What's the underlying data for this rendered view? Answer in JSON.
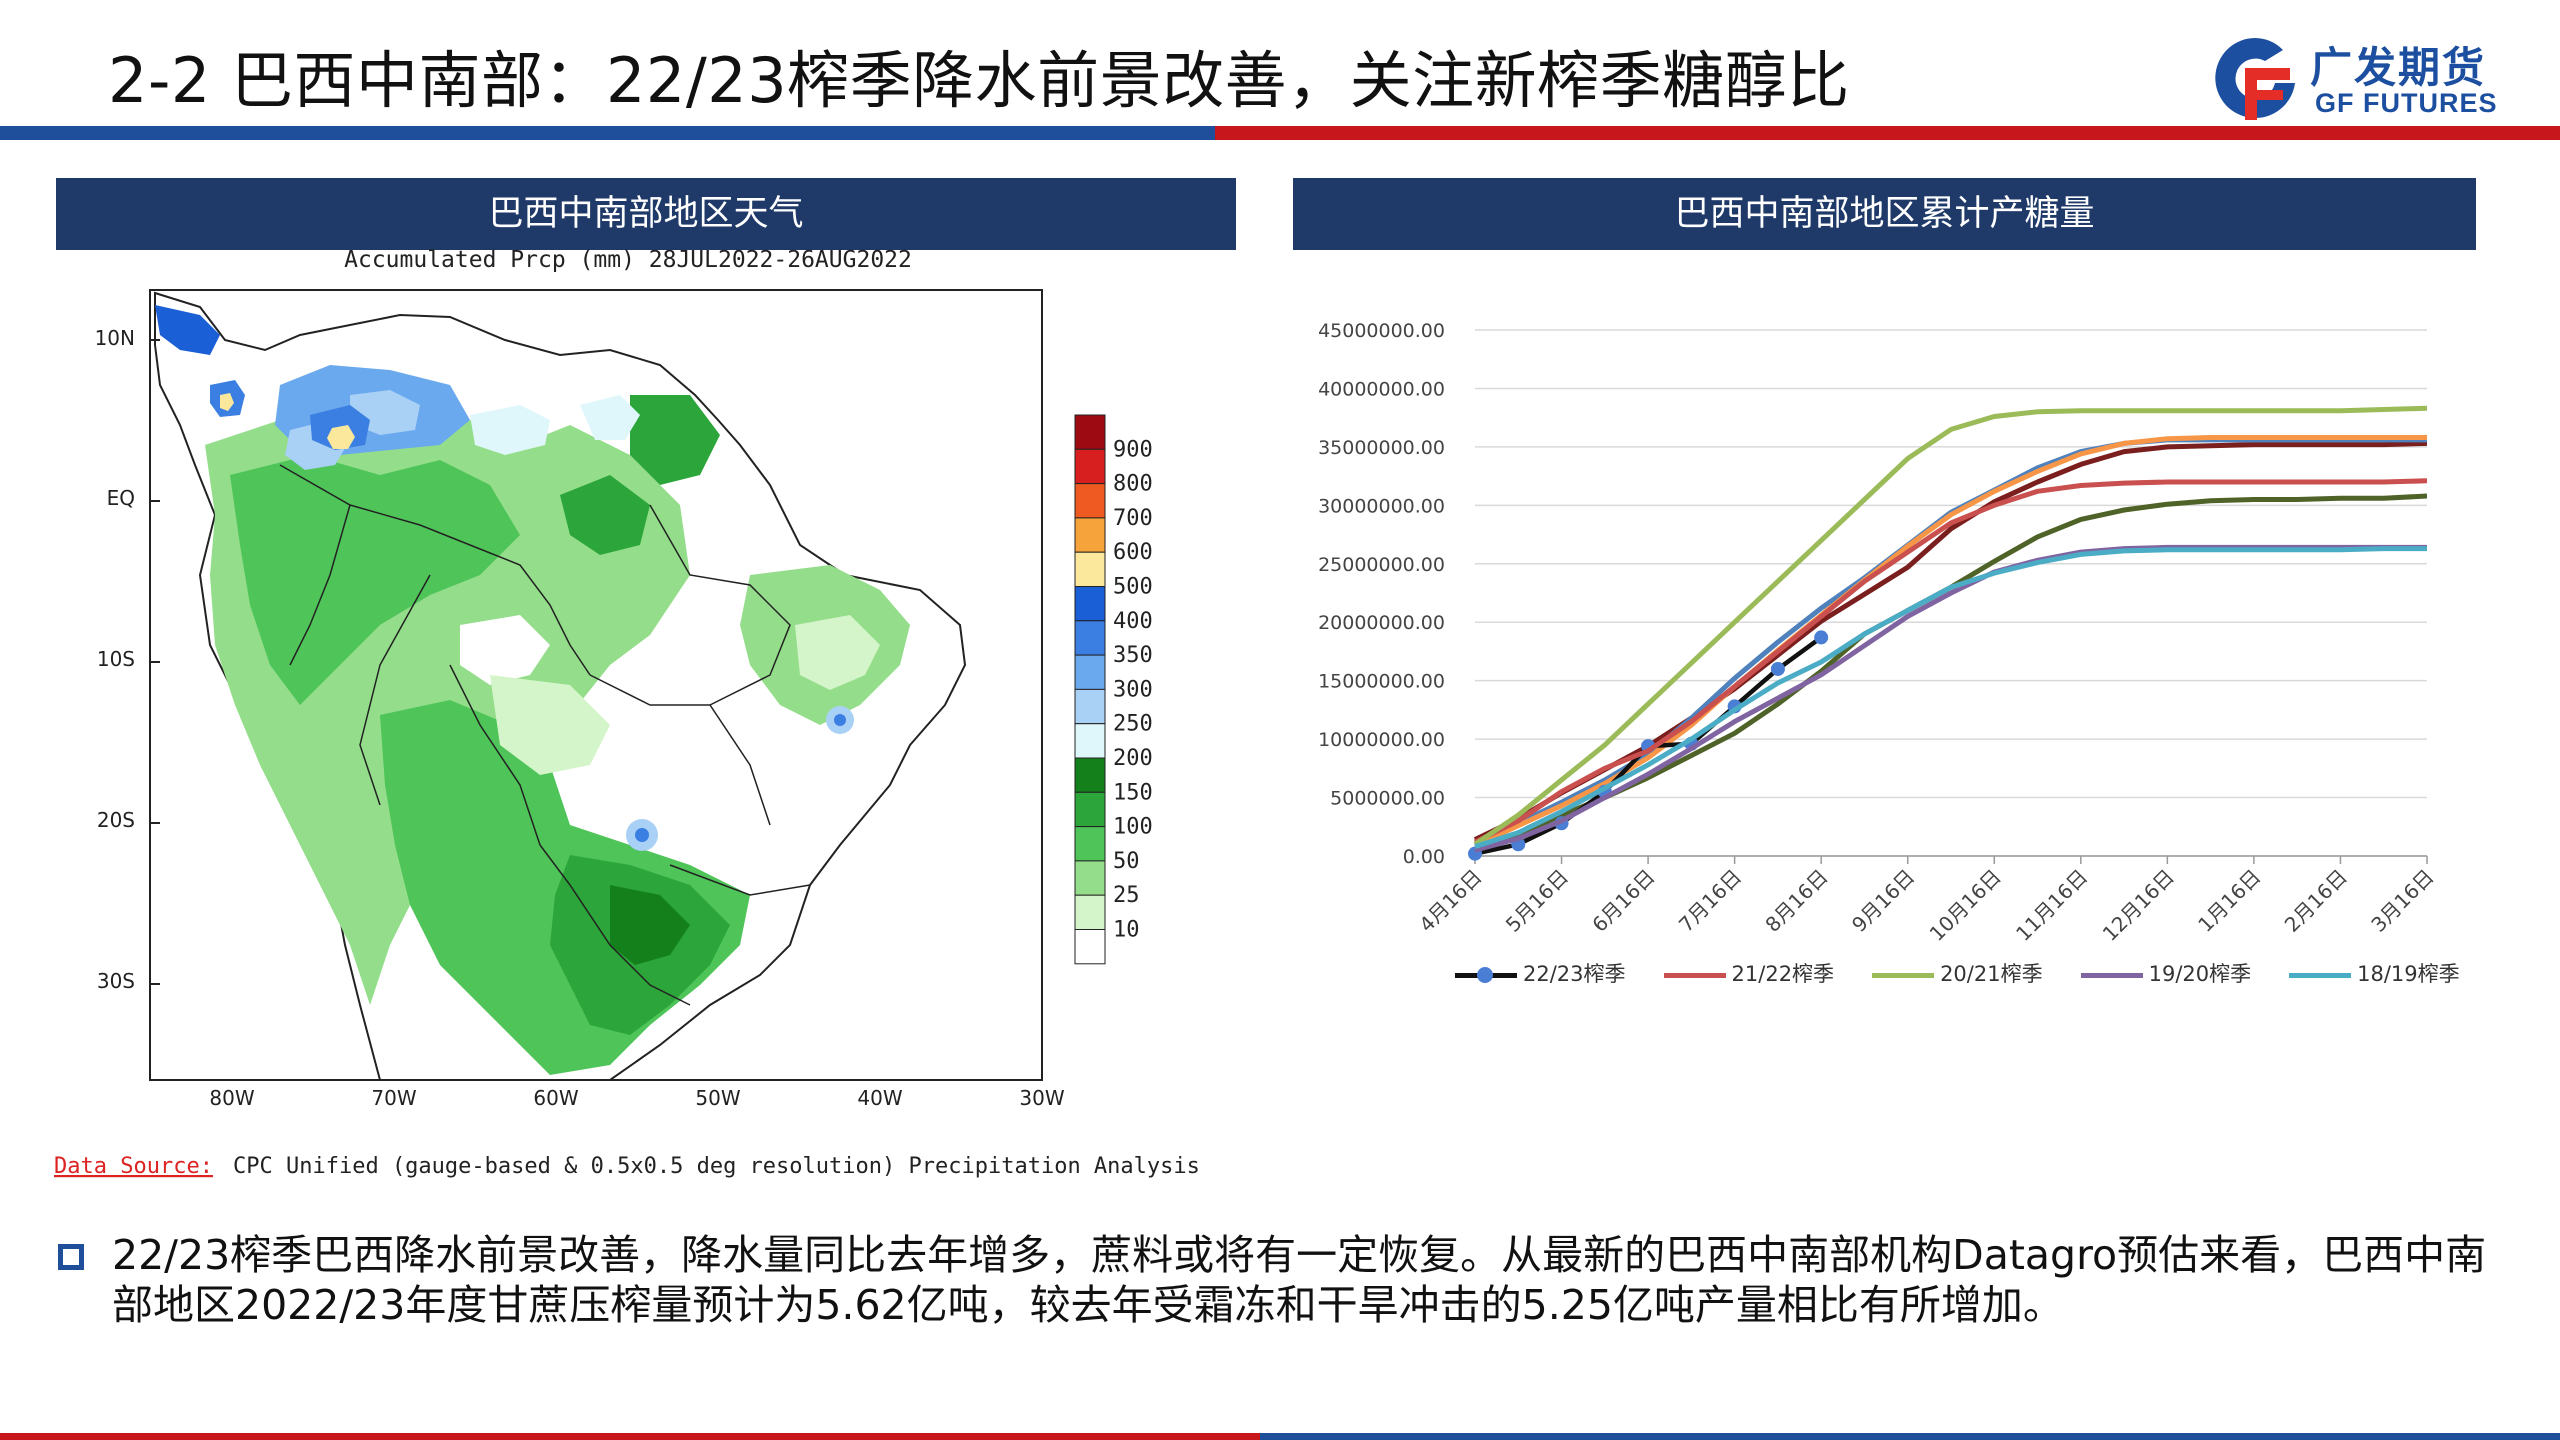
{
  "header": {
    "title": "2-2 巴西中南部：22/23榨季降水前景改善，关注新榨季糖醇比",
    "logo_cn": "广发期货",
    "logo_en": "GF FUTURES"
  },
  "colors": {
    "brand_blue": "#1f4e9a",
    "brand_red": "#c8161d",
    "panel_header": "#1f3a68"
  },
  "map_panel": {
    "header": "巴西中南部地区天气",
    "title": "Accumulated Prcp (mm) 28JUL2022-26AUG2022",
    "lat_labels": [
      "10N",
      "EQ",
      "10S",
      "20S",
      "30S"
    ],
    "lon_labels": [
      "80W",
      "70W",
      "60W",
      "50W",
      "40W",
      "30W"
    ],
    "scale_labels": [
      "900",
      "800",
      "700",
      "600",
      "500",
      "400",
      "350",
      "300",
      "250",
      "200",
      "150",
      "100",
      "50",
      "25",
      "10"
    ],
    "scale_colors": [
      "#9e0a12",
      "#d71f1f",
      "#ef5a22",
      "#f7a33b",
      "#fbe89c",
      "#1a5fd6",
      "#3b7fe3",
      "#6aa9ee",
      "#a9d0f5",
      "#dff6fa",
      "#13801c",
      "#2ca63a",
      "#4fc459",
      "#94de8b",
      "#d4f5c9",
      "#ffffff"
    ],
    "source_label": "Data Source:",
    "source_text": "CPC Unified (gauge-based & 0.5x0.5 deg resolution) Precipitation Analysis"
  },
  "chart_panel": {
    "header": "巴西中南部地区累计产糖量"
  },
  "chart_data": {
    "type": "line",
    "title": "巴西中南部地区累计产糖量",
    "categories": [
      "4月16日",
      "5月16日",
      "6月16日",
      "7月16日",
      "8月16日",
      "9月16日",
      "10月16日",
      "11月16日",
      "12月16日",
      "1月16日",
      "2月16日",
      "3月16日"
    ],
    "y_ticks": [
      "0.00",
      "5000000.00",
      "10000000.00",
      "15000000.00",
      "20000000.00",
      "25000000.00",
      "30000000.00",
      "35000000.00",
      "40000000.00",
      "45000000.00"
    ],
    "ylim": [
      0,
      45000000
    ],
    "xlabel": "",
    "ylabel": "",
    "series": [
      {
        "name": "22/23榨季",
        "color": "#111111",
        "markers": true,
        "x": [
          0,
          0.5,
          1,
          1.5,
          2,
          2.5,
          3,
          3.5,
          4
        ],
        "values": [
          200000,
          1000000,
          2800000,
          5500000,
          9400000,
          9600000,
          12800000,
          16000000,
          18700000
        ]
      },
      {
        "name": "21/22榨季",
        "color": "#c9504e",
        "markers": false,
        "x": [
          0,
          0.5,
          1,
          1.5,
          2,
          2.5,
          3,
          3.5,
          4,
          4.5,
          5,
          5.5,
          6,
          6.5,
          7,
          7.5,
          8,
          8.5,
          9,
          9.5,
          10,
          10.5,
          11
        ],
        "values": [
          1200000,
          3000000,
          5500000,
          7500000,
          9000000,
          11500000,
          14500000,
          17500000,
          20500000,
          23500000,
          26000000,
          28500000,
          30000000,
          31200000,
          31700000,
          31900000,
          32000000,
          32000000,
          32000000,
          32000000,
          32000000,
          32000000,
          32100000
        ]
      },
      {
        "name": "20/21榨季",
        "color": "#9bbb59",
        "markers": false,
        "x": [
          0,
          0.5,
          1,
          1.5,
          2,
          2.5,
          3,
          3.5,
          4,
          4.5,
          5,
          5.5,
          6,
          6.5,
          7,
          7.5,
          8,
          8.5,
          9,
          9.5,
          10,
          10.5,
          11
        ],
        "values": [
          1000000,
          3500000,
          6500000,
          9500000,
          13000000,
          16500000,
          20000000,
          23500000,
          27000000,
          30500000,
          34000000,
          36500000,
          37600000,
          38000000,
          38100000,
          38100000,
          38100000,
          38100000,
          38100000,
          38100000,
          38100000,
          38200000,
          38300000
        ]
      },
      {
        "name": "19/20榨季",
        "color": "#8064a2",
        "markers": false,
        "x": [
          0,
          0.5,
          1,
          1.5,
          2,
          2.5,
          3,
          3.5,
          4,
          4.5,
          5,
          5.5,
          6,
          6.5,
          7,
          7.5,
          8,
          8.5,
          9,
          9.5,
          10,
          10.5,
          11
        ],
        "values": [
          500000,
          1500000,
          3000000,
          5000000,
          7000000,
          9200000,
          11500000,
          13500000,
          15500000,
          18000000,
          20500000,
          22500000,
          24300000,
          25300000,
          26000000,
          26300000,
          26400000,
          26400000,
          26400000,
          26400000,
          26400000,
          26400000,
          26400000
        ]
      },
      {
        "name": "18/19榨季",
        "color": "#4bacc6",
        "markers": false,
        "x": [
          0,
          0.5,
          1,
          1.5,
          2,
          2.5,
          3,
          3.5,
          4,
          4.5,
          5,
          5.5,
          6,
          6.5,
          7,
          7.5,
          8,
          8.5,
          9,
          9.5,
          10,
          10.5,
          11
        ],
        "values": [
          800000,
          2000000,
          3800000,
          5800000,
          7800000,
          10000000,
          12500000,
          14800000,
          16600000,
          19000000,
          21000000,
          23000000,
          24200000,
          25100000,
          25800000,
          26100000,
          26200000,
          26200000,
          26200000,
          26200000,
          26200000,
          26300000,
          26300000
        ]
      },
      {
        "name": "extra-dark-green",
        "color": "#4f6228",
        "markers": false,
        "legend": false,
        "x": [
          0,
          0.5,
          1,
          1.5,
          2,
          2.5,
          3,
          3.5,
          4,
          4.5,
          5,
          5.5,
          6,
          6.5,
          7,
          7.5,
          8,
          8.5,
          9,
          9.5,
          10,
          10.5,
          11
        ],
        "values": [
          600000,
          1800000,
          3500000,
          5000000,
          6700000,
          8600000,
          10500000,
          13000000,
          15800000,
          19000000,
          21000000,
          23000000,
          25200000,
          27300000,
          28800000,
          29600000,
          30100000,
          30400000,
          30500000,
          30500000,
          30600000,
          30600000,
          30800000
        ]
      },
      {
        "name": "extra-dark-red",
        "color": "#7b1e1e",
        "markers": false,
        "legend": false,
        "x": [
          0,
          0.5,
          1,
          1.5,
          2,
          2.5,
          3,
          3.5,
          4,
          4.5,
          5,
          5.5,
          6,
          6.5,
          7,
          7.5,
          8,
          8.5,
          9,
          9.5,
          10,
          10.5,
          11
        ],
        "values": [
          1400000,
          3200000,
          5400000,
          7400000,
          9400000,
          11800000,
          14300000,
          17200000,
          20100000,
          22400000,
          24700000,
          28000000,
          30300000,
          32000000,
          33500000,
          34600000,
          35000000,
          35100000,
          35200000,
          35200000,
          35200000,
          35200000,
          35300000
        ]
      },
      {
        "name": "extra-blue",
        "color": "#4f81bd",
        "markers": false,
        "legend": false,
        "x": [
          0,
          0.5,
          1,
          1.5,
          2,
          2.5,
          3,
          3.5,
          4,
          4.5,
          5,
          5.5,
          6,
          6.5,
          7,
          7.5,
          8,
          8.5,
          9,
          9.5,
          10,
          10.5,
          11
        ],
        "values": [
          1000000,
          2800000,
          4600000,
          6500000,
          8700000,
          11800000,
          15200000,
          18300000,
          21200000,
          23800000,
          26600000,
          29400000,
          31300000,
          33200000,
          34600000,
          35300000,
          35600000,
          35600000,
          35600000,
          35600000,
          35600000,
          35600000,
          35600000
        ]
      },
      {
        "name": "extra-orange",
        "color": "#f79646",
        "markers": false,
        "legend": false,
        "x": [
          0,
          0.5,
          1,
          1.5,
          2,
          2.5,
          3,
          3.5,
          4,
          4.5,
          5,
          5.5,
          6,
          6.5,
          7,
          7.5,
          8,
          8.5,
          9,
          9.5,
          10,
          10.5,
          11
        ],
        "values": [
          900000,
          2600000,
          4300000,
          6200000,
          8400000,
          11200000,
          14500000,
          17600000,
          20600000,
          23600000,
          26500000,
          29200000,
          31200000,
          32900000,
          34400000,
          35300000,
          35700000,
          35800000,
          35800000,
          35800000,
          35800000,
          35800000,
          35800000
        ]
      }
    ]
  },
  "note": {
    "text": "22/23榨季巴西降水前景改善，降水量同比去年增多，蔗料或将有一定恢复。从最新的巴西中南部机构Datagro预估来看，巴西中南部地区2022/23年度甘蔗压榨量预计为5.62亿吨，较去年受霜冻和干旱冲击的5.25亿吨产量相比有所增加。"
  }
}
